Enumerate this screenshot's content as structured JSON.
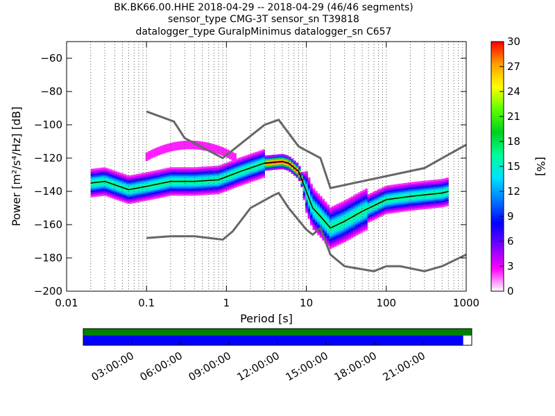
{
  "titles": {
    "line1": "BK.BK66.00.HHE   2018-04-29 -- 2018-04-29  (46/46 segments)",
    "line2": "sensor_type CMG-3T sensor_sn T39818",
    "line3": "datalogger_type GuralpMinimus datalogger_sn C657"
  },
  "chart_data": [
    {
      "type": "heatmap",
      "title": "BK.BK66.00.HHE   2018-04-29 -- 2018-04-29  (46/46 segments)",
      "xlabel": "Period [s]",
      "ylabel": "Power [m²/s⁴/Hz] [dB]",
      "xscale": "log",
      "xlim": [
        0.01,
        1000
      ],
      "ylim": [
        -200,
        -50
      ],
      "xticks": [
        0.01,
        0.1,
        1,
        10,
        100,
        1000
      ],
      "xtick_labels": [
        "0.01",
        "0.1",
        "1",
        "10",
        "100",
        "1000"
      ],
      "yticks": [
        -200,
        -180,
        -160,
        -140,
        -120,
        -100,
        -80,
        -60
      ],
      "ytick_labels": [
        "−200",
        "−180",
        "−160",
        "−140",
        "−120",
        "−100",
        "−80",
        "−60"
      ],
      "grid": "dotted vertical",
      "colorbar": {
        "label": "[%]",
        "range": [
          0,
          30
        ],
        "ticks": [
          0,
          3,
          6,
          9,
          12,
          15,
          18,
          21,
          24,
          27,
          30
        ],
        "colormap": [
          "#ffffff",
          "#ff00ff",
          "#7a00ff",
          "#0000ff",
          "#0078ff",
          "#00e0ff",
          "#00ff9a",
          "#00d020",
          "#5aff00",
          "#ffff00",
          "#ffa000",
          "#ff0000"
        ]
      },
      "series": [
        {
          "name": "",
          "color": "#666666",
          "x": [
            0.1,
            0.22,
            0.3,
            0.9,
            3.0,
            4.5,
            8.0,
            15,
            20,
            300,
            1000
          ],
          "y": [
            -92,
            -98,
            -108,
            -120,
            -100,
            -97,
            -113,
            -120,
            -138,
            -126,
            -112
          ]
        },
        {
          "name": "",
          "color": "#666666",
          "x": [
            0.1,
            0.2,
            0.4,
            0.9,
            1.2,
            2.0,
            4.0,
            4.5,
            6.0,
            10,
            12,
            15,
            20,
            30,
            70,
            100,
            150,
            300,
            500,
            1000
          ],
          "y": [
            -168,
            -167,
            -167,
            -169,
            -164,
            -150,
            -142,
            -141,
            -150,
            -163,
            -166,
            -162,
            -178,
            -185,
            -188,
            -185,
            -185,
            -188,
            -185,
            -178
          ]
        },
        {
          "name": "",
          "color": "#000000",
          "x": [
            0.02,
            0.03,
            0.06,
            0.1,
            0.2,
            0.4,
            0.8,
            1.5,
            3,
            5,
            6,
            8,
            10,
            12,
            15,
            20,
            30,
            50,
            100,
            200,
            500,
            600
          ],
          "y": [
            -135,
            -134,
            -139,
            -137,
            -134,
            -134,
            -133,
            -128,
            -123,
            -122,
            -123,
            -128,
            -140,
            -150,
            -155,
            -162,
            -158,
            -152,
            -145,
            -143,
            -141,
            -140
          ]
        }
      ]
    },
    {
      "type": "timeline",
      "ticks": [
        "03:00:00",
        "06:00:00",
        "09:00:00",
        "12:00:00",
        "15:00:00",
        "18:00:00",
        "21:00:00"
      ],
      "bars": [
        {
          "color": "#008000",
          "start_fraction": 0.0,
          "end_fraction": 1.0
        },
        {
          "color": "#0000ff",
          "start_fraction": 0.0,
          "end_fraction": 0.978
        }
      ]
    }
  ]
}
